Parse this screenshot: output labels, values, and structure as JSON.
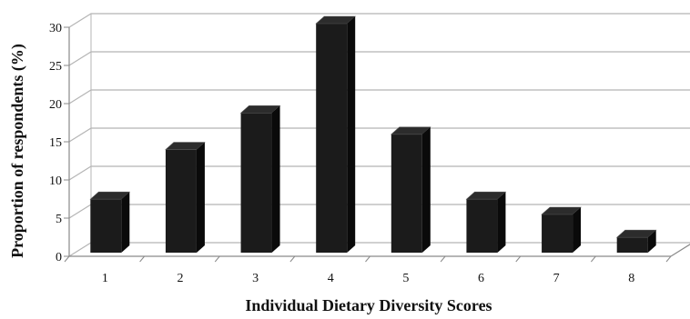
{
  "chart_data": {
    "type": "bar",
    "title": "",
    "xlabel": "Individual Dietary Diversity Scores",
    "ylabel": "Proportion of respondents (%)",
    "categories": [
      "1",
      "2",
      "3",
      "4",
      "5",
      "6",
      "7",
      "8"
    ],
    "values": [
      7,
      13.5,
      18.3,
      30,
      15.5,
      7,
      5,
      2
    ],
    "ylim": [
      0,
      30
    ],
    "yticks": [
      0,
      5,
      10,
      15,
      20,
      25,
      30
    ],
    "grid": true,
    "legend": "none",
    "style": "3d-column",
    "colors": {
      "bar_front": "#1b1b1b",
      "bar_top": "#2c2c2c",
      "bar_side": "#0a0a0a",
      "grid": "#b5b5b5",
      "wall_axis": "#8a8a8a"
    }
  }
}
